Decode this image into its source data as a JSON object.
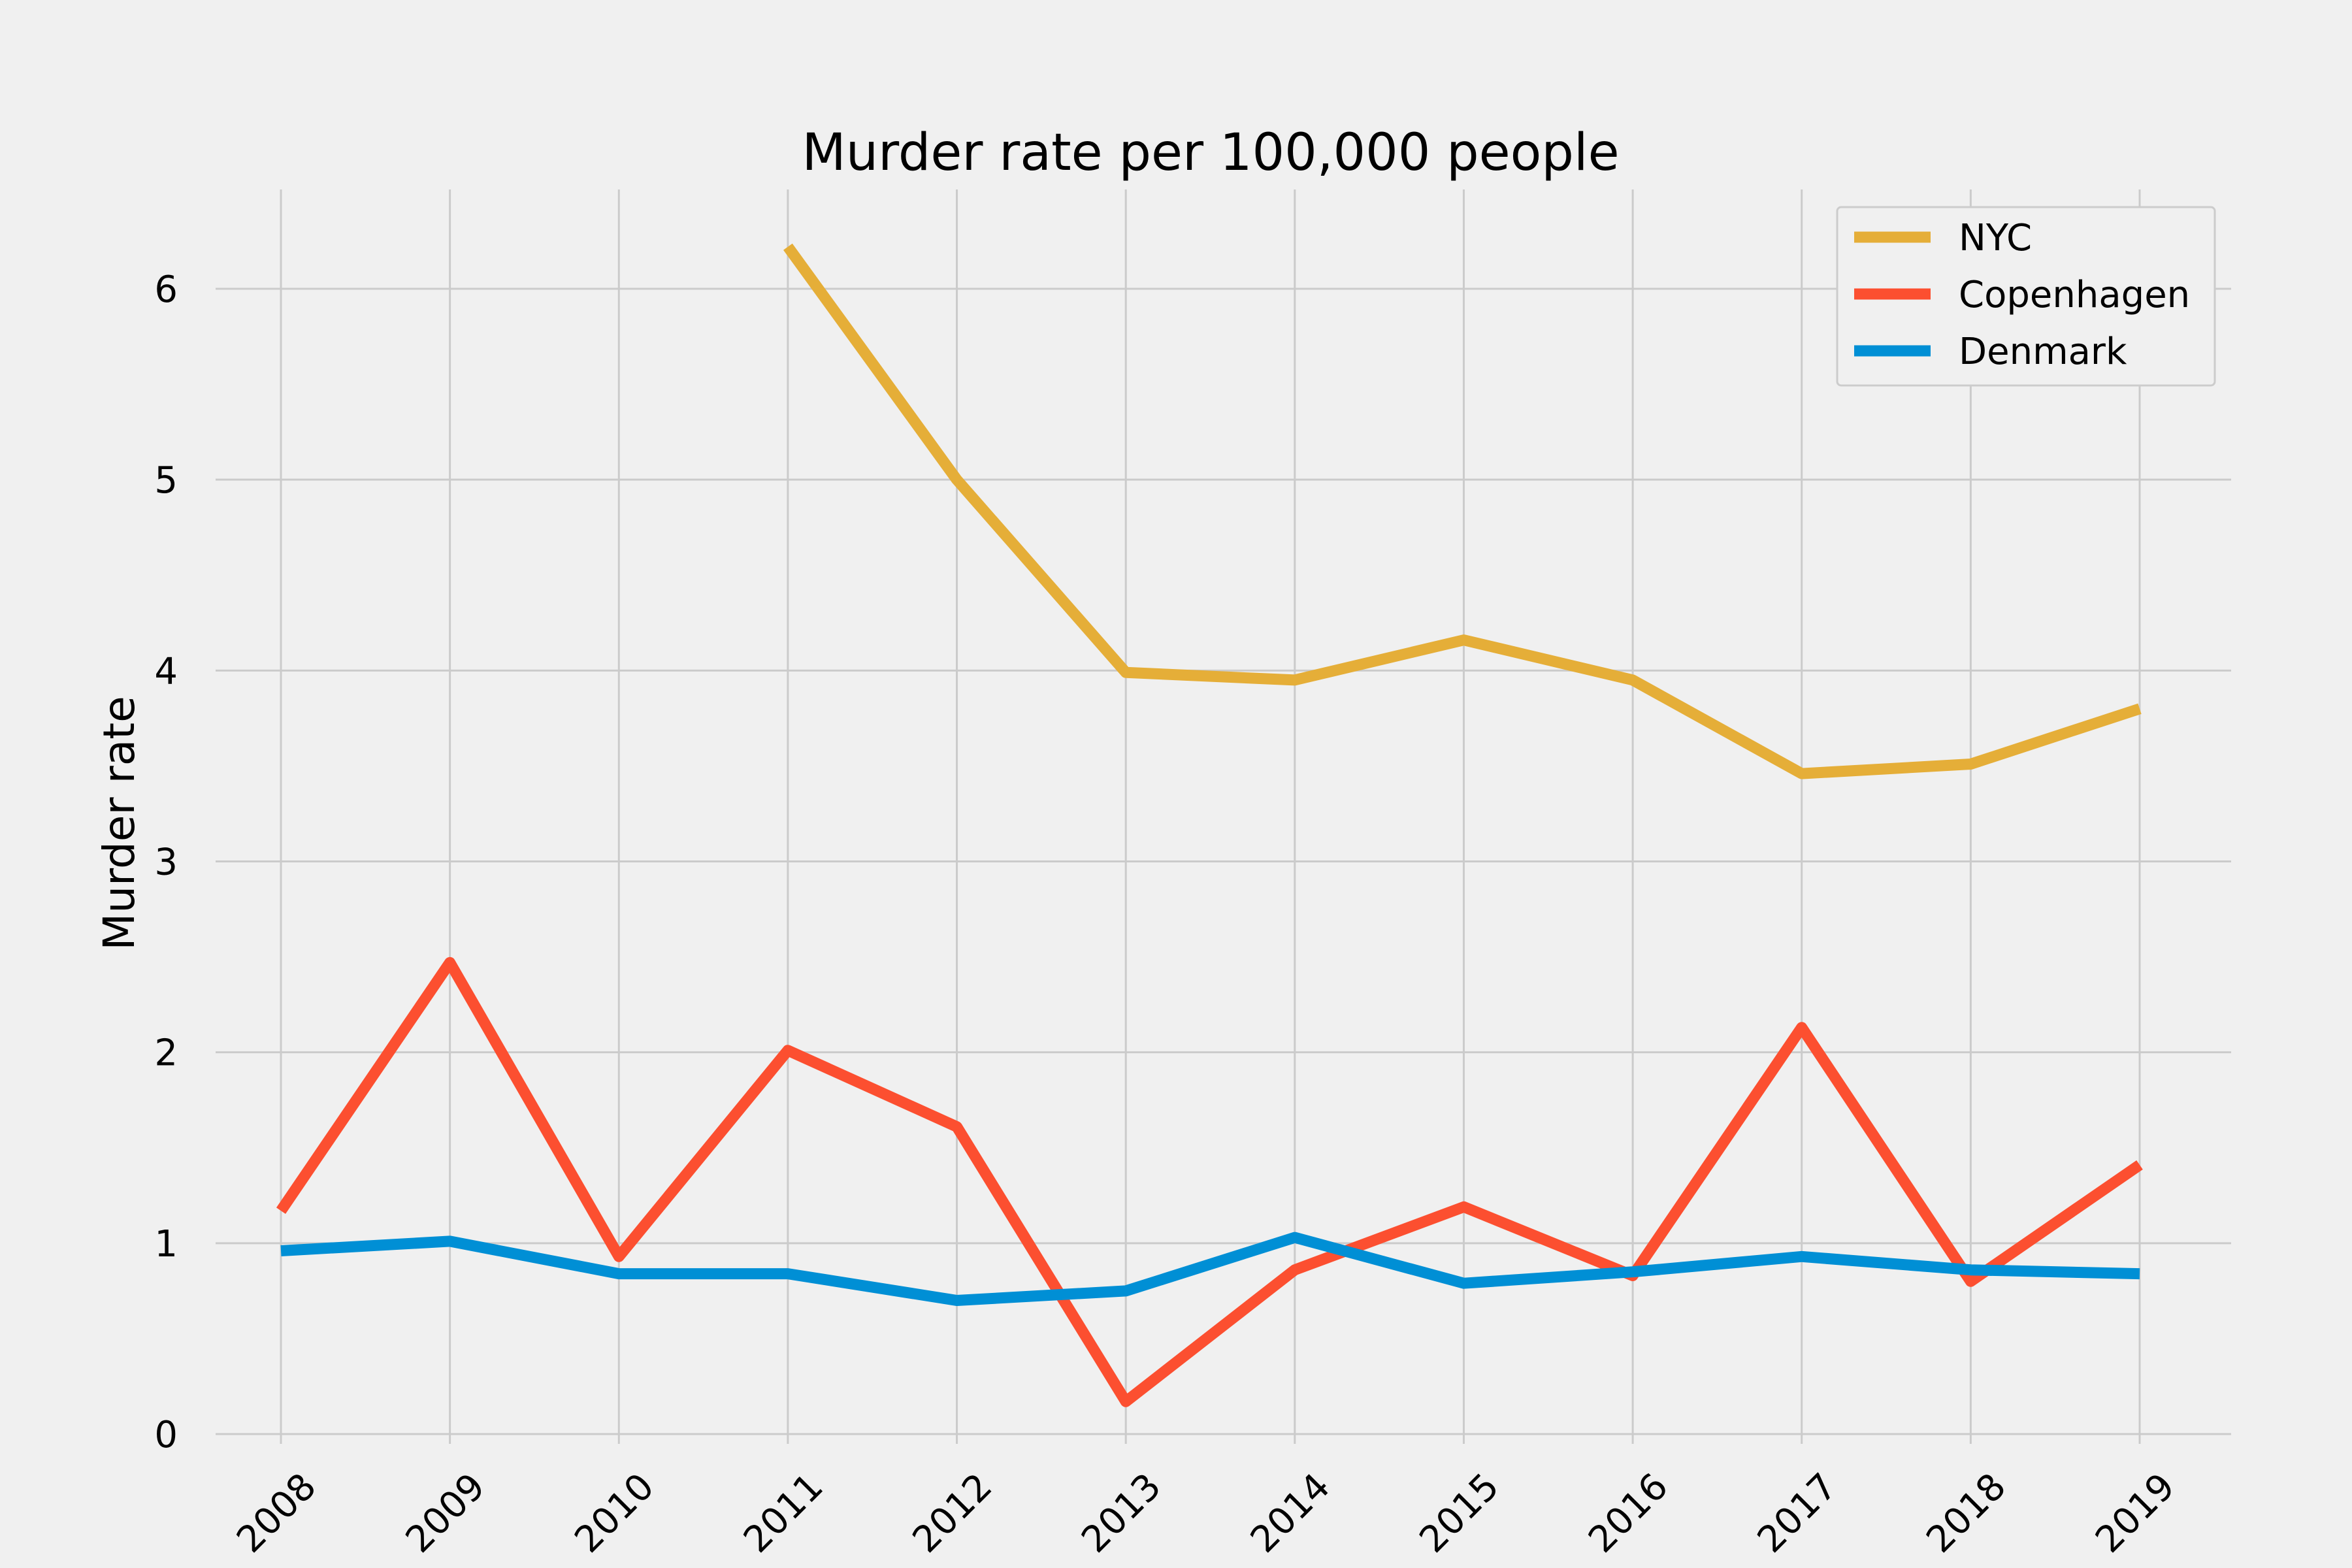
{
  "chart_data": {
    "type": "line",
    "title": "Murder rate per 100,000 people",
    "xlabel": "",
    "ylabel": "Murder rate",
    "x": [
      "2008",
      "2009",
      "2010",
      "2011",
      "2012",
      "2013",
      "2014",
      "2015",
      "2016",
      "2017",
      "2018",
      "2019"
    ],
    "yticks": [
      0,
      1,
      2,
      3,
      4,
      5,
      6
    ],
    "ylim": [
      -0.1,
      6.5
    ],
    "grid": true,
    "legend_position": "top-right",
    "series": [
      {
        "name": "NYC",
        "color": "#e5ae38",
        "values": [
          null,
          null,
          null,
          6.22,
          5.0,
          3.99,
          3.95,
          4.16,
          3.95,
          3.46,
          3.51,
          3.8
        ]
      },
      {
        "name": "Copenhagen",
        "color": "#fc4f30",
        "values": [
          1.17,
          2.47,
          0.93,
          2.01,
          1.61,
          0.17,
          0.86,
          1.19,
          0.83,
          2.13,
          0.8,
          1.41
        ]
      },
      {
        "name": "Denmark",
        "color": "#008fd5",
        "values": [
          0.96,
          1.01,
          0.84,
          0.84,
          0.7,
          0.75,
          1.03,
          0.79,
          0.85,
          0.93,
          0.86,
          0.84
        ]
      }
    ]
  }
}
